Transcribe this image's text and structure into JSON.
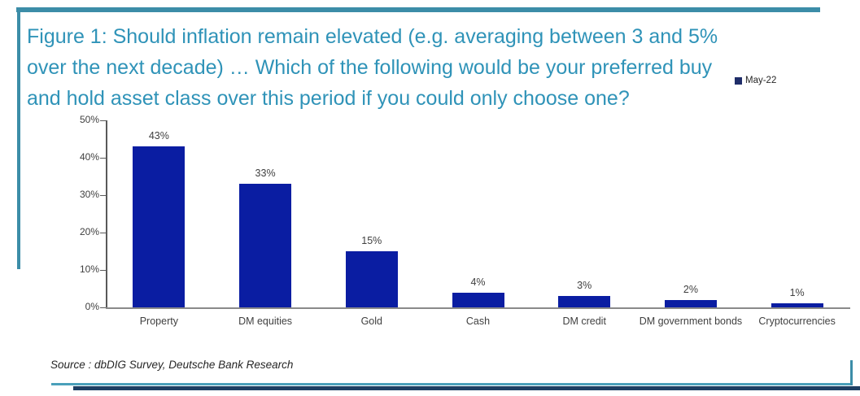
{
  "figure": {
    "title": "Figure 1: Should inflation remain elevated (e.g. averaging between 3 and 5% over the next decade) … Which of the following would be your preferred buy and hold asset class over this period if you could only choose one?",
    "title_lines": [
      "Figure 1: Should inflation remain elevated (e.g. averaging between 3 and 5%",
      "over the next decade) … Which of the following would be your preferred buy",
      "and hold asset class over this period if you could only choose one?"
    ],
    "legend_label": "May-22",
    "source": "Source : dbDIG Survey, Deutsche Bank Research"
  },
  "colors": {
    "title_teal": "#2f93b8",
    "frame_teal": "#3c8da8",
    "frame_bottom_navy": "#1e3f63",
    "bar_navy": "#0a1da2",
    "legend_navy": "#1f2d69",
    "axis_gray": "#8a8a8a",
    "label_gray": "#404040"
  },
  "chart_data": {
    "type": "bar",
    "title": "Figure 1: Should inflation remain elevated (e.g. averaging between 3 and 5% over the next decade) … Which of the following would be your preferred buy and hold asset class over this period if you could only choose one?",
    "categories": [
      "Property",
      "DM equities",
      "Gold",
      "Cash",
      "DM credit",
      "DM government bonds",
      "Cryptocurrencies"
    ],
    "values": [
      43,
      33,
      15,
      4,
      3,
      2,
      1
    ],
    "value_labels": [
      "43%",
      "33%",
      "15%",
      "4%",
      "3%",
      "2%",
      "1%"
    ],
    "series_name": "May-22",
    "xlabel": "",
    "ylabel": "",
    "ylim": [
      0,
      50
    ],
    "yticks": [
      0,
      10,
      20,
      30,
      40,
      50
    ],
    "ytick_labels": [
      "0%",
      "10%",
      "20%",
      "30%",
      "40%",
      "50%"
    ],
    "legend_position": "top-right",
    "grid": false
  }
}
